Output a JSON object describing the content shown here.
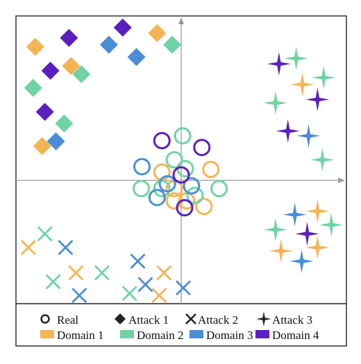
{
  "chart_data": {
    "type": "scatter",
    "title": "",
    "xlabel": "",
    "ylabel": "",
    "xlim": [
      -240,
      240
    ],
    "ylim": [
      -180,
      240
    ],
    "grid": false,
    "legend_position": "bottom",
    "colors": {
      "Domain 1": "#F4B454",
      "Domain 2": "#6FD3A3",
      "Domain 3": "#4A8DD6",
      "Domain 4": "#5A1FBF"
    },
    "legend": {
      "markers": [
        {
          "label": "Real",
          "shape": "circle"
        },
        {
          "label": "Attack 1",
          "shape": "diamond"
        },
        {
          "label": "Attack 2",
          "shape": "cross"
        },
        {
          "label": "Attack 3",
          "shape": "star4"
        }
      ],
      "domains": [
        "Domain 1",
        "Domain 2",
        "Domain 3",
        "Domain 4"
      ]
    },
    "series": [
      {
        "type": "Real",
        "domain": "Domain 1",
        "points": [
          [
            -28,
            12
          ],
          [
            -10,
            -30
          ],
          [
            43,
            16
          ],
          [
            33,
            -38
          ],
          [
            8,
            -30
          ],
          [
            -10,
            -12
          ]
        ]
      },
      {
        "type": "Real",
        "domain": "Domain 2",
        "points": [
          [
            2,
            65
          ],
          [
            -10,
            30
          ],
          [
            6,
            17
          ],
          [
            -58,
            -12
          ],
          [
            -28,
            -12
          ],
          [
            55,
            -12
          ],
          [
            20,
            -22
          ]
        ]
      },
      {
        "type": "Real",
        "domain": "Domain 3",
        "points": [
          [
            -57,
            20
          ],
          [
            15,
            -8
          ],
          [
            -35,
            -25
          ],
          [
            -20,
            -5
          ]
        ]
      },
      {
        "type": "Real",
        "domain": "Domain 4",
        "points": [
          [
            -28,
            58
          ],
          [
            30,
            48
          ],
          [
            0,
            8
          ],
          [
            5,
            -40
          ]
        ]
      },
      {
        "type": "Attack 1",
        "domain": "Domain 1",
        "points": [
          [
            -212,
            195
          ],
          [
            -160,
            167
          ],
          [
            -35,
            215
          ],
          [
            -202,
            50
          ]
        ]
      },
      {
        "type": "Attack 1",
        "domain": "Domain 2",
        "points": [
          [
            -215,
            135
          ],
          [
            -145,
            155
          ],
          [
            -13,
            198
          ],
          [
            -170,
            83
          ]
        ]
      },
      {
        "type": "Attack 1",
        "domain": "Domain 3",
        "points": [
          [
            -105,
            198
          ],
          [
            -65,
            180
          ],
          [
            -182,
            57
          ]
        ]
      },
      {
        "type": "Attack 1",
        "domain": "Domain 4",
        "points": [
          [
            -163,
            208
          ],
          [
            -85,
            223
          ],
          [
            -190,
            160
          ],
          [
            -198,
            100
          ]
        ]
      },
      {
        "type": "Attack 2",
        "domain": "Domain 1",
        "points": [
          [
            -222,
            -98
          ],
          [
            -153,
            -135
          ],
          [
            -25,
            -135
          ],
          [
            -32,
            -168
          ]
        ]
      },
      {
        "type": "Attack 2",
        "domain": "Domain 2",
        "points": [
          [
            -198,
            -78
          ],
          [
            -115,
            -135
          ],
          [
            -186,
            -148
          ],
          [
            -75,
            -165
          ]
        ]
      },
      {
        "type": "Attack 2",
        "domain": "Domain 3",
        "points": [
          [
            -168,
            -98
          ],
          [
            -148,
            -168
          ],
          [
            -63,
            -118
          ],
          [
            -52,
            -152
          ],
          [
            3,
            -157
          ]
        ]
      },
      {
        "type": "Attack 3",
        "domain": "Domain 1",
        "points": [
          [
            176,
            140
          ],
          [
            198,
            -45
          ],
          [
            145,
            -103
          ],
          [
            198,
            -98
          ]
        ]
      },
      {
        "type": "Attack 3",
        "domain": "Domain 2",
        "points": [
          [
            167,
            178
          ],
          [
            207,
            150
          ],
          [
            137,
            113
          ],
          [
            205,
            30
          ],
          [
            218,
            -65
          ],
          [
            137,
            -72
          ]
        ]
      },
      {
        "type": "Attack 3",
        "domain": "Domain 3",
        "points": [
          [
            185,
            65
          ],
          [
            165,
            -50
          ],
          [
            175,
            -118
          ]
        ]
      },
      {
        "type": "Attack 3",
        "domain": "Domain 4",
        "points": [
          [
            142,
            170
          ],
          [
            198,
            118
          ],
          [
            155,
            72
          ],
          [
            183,
            -78
          ]
        ]
      }
    ]
  }
}
